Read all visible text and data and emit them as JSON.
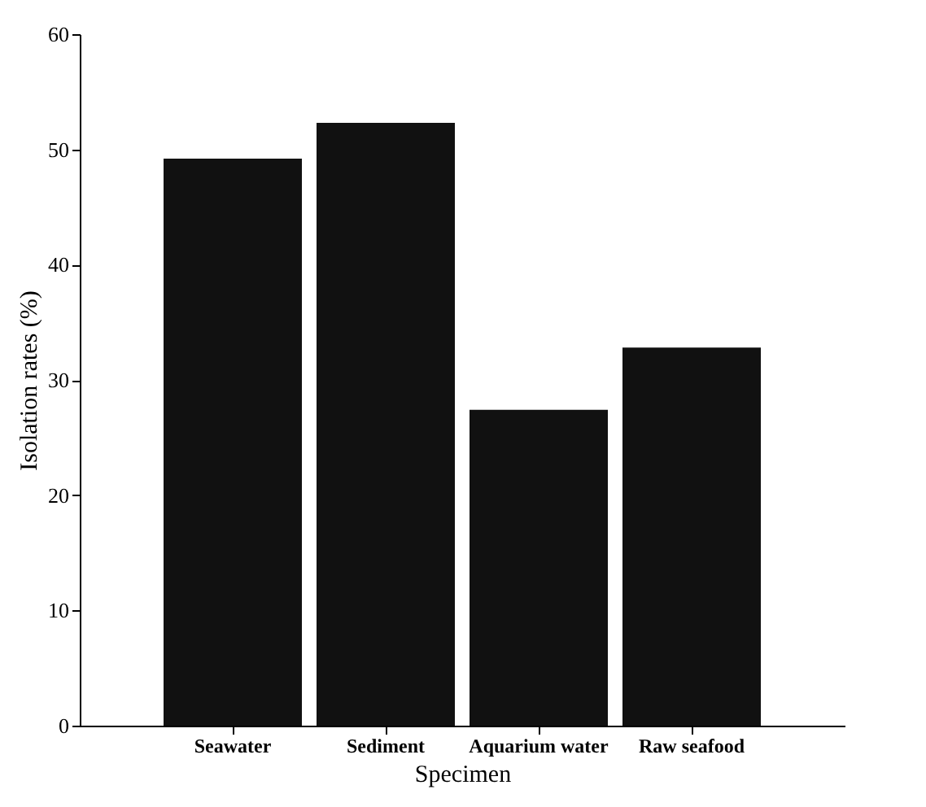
{
  "chart_data": {
    "type": "bar",
    "xlabel": "Specimen",
    "ylabel": "Isolation rates (%)",
    "categories": [
      "Seawater",
      "Sediment",
      "Aquarium water",
      "Raw seafood"
    ],
    "values": [
      49.2,
      52.3,
      27.4,
      32.8
    ],
    "color": "#111111",
    "ylim": [
      0,
      60
    ],
    "yticks": [
      0,
      10,
      20,
      30,
      40,
      50,
      60
    ],
    "grid": false
  }
}
